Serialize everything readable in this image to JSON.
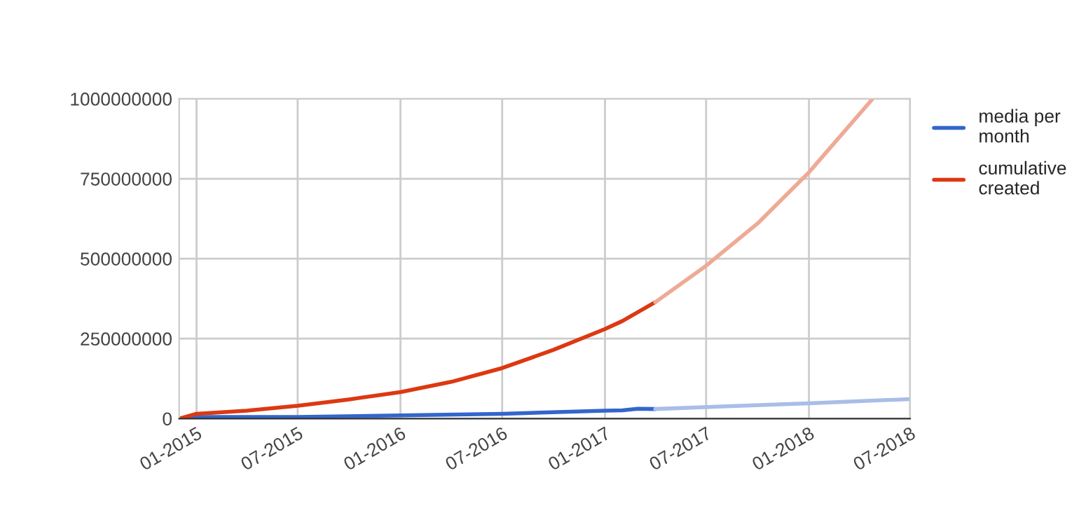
{
  "chart_data": {
    "type": "line",
    "grid": true,
    "legend": "top right",
    "line_style": "solid",
    "marker": "none",
    "xlim": [
      "2014-12-01",
      "2018-07-01"
    ],
    "xticks": [
      {
        "value": "2015-01",
        "label": "01-2015"
      },
      {
        "value": "2015-07",
        "label": "07-2015"
      },
      {
        "value": "2016-01",
        "label": "01-2016"
      },
      {
        "value": "2016-07",
        "label": "07-2016"
      },
      {
        "value": "2017-01",
        "label": "01-2017"
      },
      {
        "value": "2017-07",
        "label": "07-2017"
      },
      {
        "value": "2018-01",
        "label": "01-2018"
      },
      {
        "value": "2018-07",
        "label": "07-2018"
      }
    ],
    "ylim": [
      0,
      1000000000
    ],
    "yticks": [
      0,
      250000000,
      500000000,
      750000000,
      1000000000
    ],
    "series": [
      {
        "name": "media per month",
        "color": "#3366cc",
        "x": [
          "2014-12-01",
          "2015-01",
          "2015-07",
          "2016-01",
          "2016-07",
          "2017-01",
          "2017-02",
          "2017-03",
          "2017-04"
        ],
        "values": [
          0,
          5000000,
          5000000,
          10000000,
          15000000,
          25000000,
          26000000,
          31000000,
          30000000
        ]
      },
      {
        "name": "cumulative created",
        "color": "#dc3912",
        "x": [
          "2014-12-01",
          "2015-01",
          "2015-04",
          "2015-07",
          "2015-10",
          "2016-01",
          "2016-04",
          "2016-07",
          "2016-10",
          "2017-01",
          "2017-02",
          "2017-04"
        ],
        "values": [
          0,
          15000000,
          25000000,
          40000000,
          60000000,
          83000000,
          115000000,
          158000000,
          215000000,
          280000000,
          305000000,
          364000000
        ]
      },
      {
        "color": "#a9bde8",
        "x": [
          "2017-04",
          "2018-01",
          "2018-07"
        ],
        "values": [
          30000000,
          48000000,
          61000000
        ]
      },
      {
        "color": "#eeaa96",
        "x": [
          "2017-04",
          "2017-07",
          "2017-10",
          "2018-01",
          "2018-04-25"
        ],
        "values": [
          364000000,
          478000000,
          610000000,
          770000000,
          1000000000
        ]
      }
    ]
  }
}
